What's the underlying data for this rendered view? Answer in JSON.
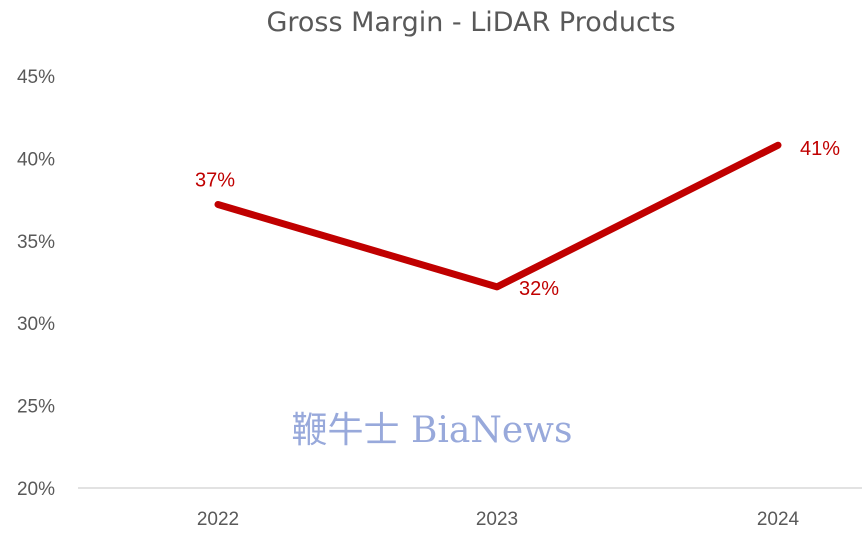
{
  "chart_data": {
    "type": "line",
    "title": "Gross Margin - LiDAR Products",
    "categories": [
      "2022",
      "2023",
      "2024"
    ],
    "series": [
      {
        "values": [
          0.372,
          0.322,
          0.408
        ],
        "labels": [
          "37%",
          "32%",
          "41%"
        ]
      }
    ],
    "y_ticks": [
      "20%",
      "25%",
      "30%",
      "35%",
      "40%",
      "45%"
    ],
    "ylim": [
      0.2,
      0.45
    ],
    "grid": false,
    "line_color": "#c00000"
  },
  "watermark": "鞭牛士 BiaNews"
}
